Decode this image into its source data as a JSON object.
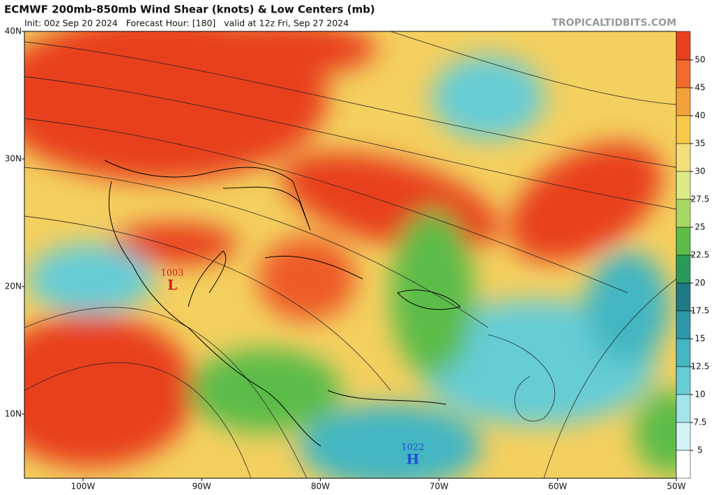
{
  "header": {
    "title": "ECMWF 200mb-850mb Wind Shear (knots) & Low Centers (mb)",
    "subtitle": "Init: 00z Sep 20 2024   Forecast Hour: [180]   valid at 12z Fri, Sep 27 2024",
    "watermark": "TROPICALTIDBITS.COM"
  },
  "map": {
    "lat_labels": [
      "40N",
      "30N",
      "20N",
      "10N"
    ],
    "lon_labels": [
      "100W",
      "90W",
      "80W",
      "70W",
      "60W",
      "50W"
    ],
    "pressure_centers": [
      {
        "symbol": "L",
        "pressure": 1003,
        "color": "#d42020"
      },
      {
        "symbol": "H",
        "pressure": 1022,
        "color": "#1f4fd8"
      }
    ]
  },
  "colorbar": {
    "levels": [
      50,
      45,
      40,
      35,
      30,
      27.5,
      25,
      22.5,
      20,
      17.5,
      15,
      12.5,
      10,
      7.5,
      5
    ],
    "colors": [
      "#e8401c",
      "#f06a2c",
      "#f4a03a",
      "#f8c848",
      "#f4e07a",
      "#dcea86",
      "#a8d864",
      "#5cbc48",
      "#2a9a58",
      "#1f7a86",
      "#2c98a8",
      "#42b6c2",
      "#66ccd6",
      "#a2e6ec",
      "#d2f4f8",
      "#ffffff"
    ]
  }
}
